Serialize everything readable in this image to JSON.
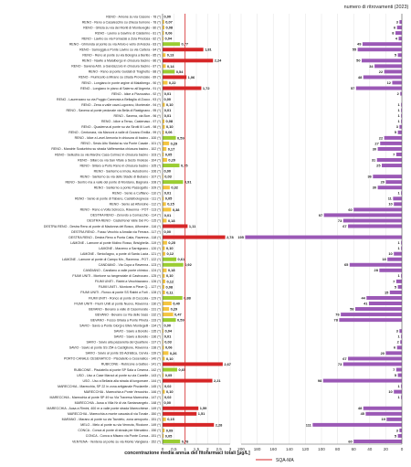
{
  "chart_data": {
    "type": "bar",
    "title_right": "numero di ritrovamenti (2023)",
    "xlabel_left": "concentrazione media annua  del fitofarmaci totali [µg/L]",
    "legend_sqa": "SQA-MA",
    "sqa_value": 1.0,
    "left_xlim": [
      0,
      3
    ],
    "left_ticks": [
      "0",
      "0,5",
      "1",
      "1,5",
      "2",
      "2,5",
      "3"
    ],
    "right_xlim": [
      0,
      200
    ],
    "right_ticks": [
      "0",
      "20",
      "40",
      "60",
      "80",
      "100",
      "120",
      "140",
      "160",
      "180",
      "200"
    ],
    "colors": {
      "above": "#d62728",
      "mid": "#9acd32",
      "low": "#f4c542",
      "count": "#9b59b6",
      "sqa": "#d62728"
    },
    "rows": [
      {
        "label": "RENO - Amone su via Casone - 78 (*)",
        "value": "0,00",
        "v": 0.0,
        "count": null
      },
      {
        "label": "RENO - Reno a Casalecchio su chiusa burrone  - 78 (*)",
        "value": "0,07",
        "v": 0.07,
        "count": 3
      },
      {
        "label": "RENO - Ghisla su via dei Monti di Monteveglio - 80 (*)",
        "value": "0,08",
        "v": 0.08,
        "count": 6
      },
      {
        "label": "RENO - Lavino a Gavrino di Calderino - 81 (*)",
        "value": "0,06",
        "v": 0.06,
        "count": 8
      },
      {
        "label": "RENO - Lavino su via Fornaciai a Zola Predosa - 82 (*)",
        "value": "0,04",
        "v": 0.04,
        "count": 4
      },
      {
        "label": "RENO - Ghironda al ponte su via Arlolo e vello di Anzola - 83 (*)",
        "value": "0,77",
        "v": 0.77,
        "count": 49
      },
      {
        "label": "RENO - Samoggia a Ponte Lavino su via Cartera - 84 (*)",
        "value": "1,81",
        "v": 1.81,
        "count": 55
      },
      {
        "label": "RENO - Reno al ponte su via Bologna a Bentio - 85 (*)",
        "value": "0,13",
        "v": 0.13,
        "count": 5
      },
      {
        "label": "RENO - Navile a Malalbergo in chiusura bacino - 86 (*)",
        "value": "2,24",
        "v": 2.24,
        "count": 50
      },
      {
        "label": "RENO - Savena Abb. a Gandazzolo in chiusura bacino - 87 (*)",
        "value": "0,14",
        "v": 0.14,
        "count": 34
      },
      {
        "label": "RENO - Reno al ponte Guidati di Traghetto - 88 (*)",
        "value": "0,54",
        "v": 0.54,
        "count": 22
      },
      {
        "label": "RENO - Fiumicello a Mirano su strada Provinciale - 89 (*)",
        "value": "1,06",
        "v": 1.06,
        "count": 48
      },
      {
        "label": "RENO - Longiano in ponte argine di Malalbergo - 90 (*)",
        "value": "0,22",
        "v": 0.22,
        "count": 12
      },
      {
        "label": "RENO - Longiano in piano di Salerno all'Argenta - 91 (*)",
        "value": "1,72",
        "v": 1.72,
        "count": 57
      },
      {
        "label": "RENO - Idice a Pizzocalvo - 92 (*)",
        "value": "0,01",
        "v": 0.01,
        "count": 2
      },
      {
        "label": "RENO - Laurenzano su via Poggio Canevaia a Bellaglia di Zocco - 93 (*)",
        "value": "0,00",
        "v": 0.0,
        "count": null
      },
      {
        "label": "RENO - Zena a valle cava Lugorano, Monterale - 94 (*)",
        "value": "0,10",
        "v": 0.1,
        "count": 1
      },
      {
        "label": "RENO - Savena al ponte pedonale via Bella di Rastignano - 95 (*)",
        "value": "0,01",
        "v": 0.01,
        "count": 1
      },
      {
        "label": "RENO - Savena, via Borr - 96 (*)",
        "value": "0,01",
        "v": 0.01,
        "count": 1
      },
      {
        "label": "RENO - Idice a Tenso, Castenaso - 97 (*)",
        "value": "0,08",
        "v": 0.08,
        "count": 1
      },
      {
        "label": "RENO - Quaderna al ponte su via Sirotti III Lurti - 98 (*)",
        "value": "0,10",
        "v": 0.1,
        "count": 3
      },
      {
        "label": "RENO - Centonara, via Marconi a valle di Ozzano Emilia - 99 (*)",
        "value": "0,06",
        "v": 0.06,
        "count": 5
      },
      {
        "label": "RENO - Idice a Lavel Armonia in chiusura di bacino - 100 (*)",
        "value": "0,59",
        "v": 0.59,
        "count": 22
      },
      {
        "label": "RENO - Sesto Alto Staidai su via Ponte Casale - 101 (*)",
        "value": "0,29",
        "v": 0.29,
        "count": 27
      },
      {
        "label": "RENO - Mandrie Scaturbino su strada Valfieramica chiusura bacino - 102 (*)",
        "value": "0,17",
        "v": 0.17,
        "count": 30
      },
      {
        "label": "RENO - Sellustra su via Marche Casa Colmez in chiusura bacino - 103 (*)",
        "value": "0,05",
        "v": 0.05,
        "count": 7
      },
      {
        "label": "RENO - Sillaro su via San Vitale a Sesto Imolese - 104 (*)",
        "value": "0,20",
        "v": 0.2,
        "count": 31
      },
      {
        "label": "RENO - Sillaro a Porto Reno in chiusura bacino - 105 (*)",
        "value": "0,75",
        "v": 0.75,
        "count": 25
      },
      {
        "label": "RENO - Santerno a Imola, Autodromo - 106 (*)",
        "value": "0,00",
        "v": 0.0,
        "count": null
      },
      {
        "label": "RENO - Santerno su via dello Stadio di Bubano - 107 (*)",
        "value": "0,03",
        "v": 0.03,
        "count": 36
      },
      {
        "label": "RENO - Sentro ma a valle del ponte di Mordano, Bagnara - 108 (*)",
        "value": "0,91",
        "v": 0.91,
        "count": 20
      },
      {
        "label": "RENO - Santerno a ponte Passogatto - 109 (*)",
        "value": "0,32",
        "v": 0.32,
        "count": 30
      },
      {
        "label": "RENO - Senio a Cuffiano - 110 (*)",
        "value": "0,01",
        "v": 0.01,
        "count": 1
      },
      {
        "label": "RENO - Senio al ponte di Tabano, Castelbolognese - 111 (*)",
        "value": "0,05",
        "v": 0.05,
        "count": 11
      },
      {
        "label": "RENO - Senio ad Alfonsine - 112 (*)",
        "value": "0,15",
        "v": 0.15,
        "count": 10
      },
      {
        "label": "RENO - Reno a Volta Scirocco, Ravenna - POT - 113 (*)",
        "value": "0,38",
        "v": 0.38,
        "count": 60
      },
      {
        "label": "DESTRA RENO - Zerovdo a Comacchio - 114 (*)",
        "value": "0,01",
        "v": 0.01,
        "count": 97
      },
      {
        "label": "DESTRA RENO - Castell'enei Valle Del Po - 115 (*)",
        "value": "0,18",
        "v": 0.18,
        "count": 73
      },
      {
        "label": "DESTRA RENO - Destra Reno al ponte di Madonna del Bosco, Alfonsine - 116 (*)",
        "value": "1,11",
        "v": 1.11,
        "count": 67
      },
      {
        "label": "DESTRA RENO - Fosso Vecchio a Amalia via Ferrara - 117 (*)",
        "value": "0,00",
        "v": 0.0,
        "count": null
      },
      {
        "label": "DESTRA RENO - Destra Reno a Punta Catia, Ravenna - 118 (*)",
        "value": "2,78",
        "v": 2.78,
        "count": 195
      },
      {
        "label": "LAMONE - Lamone al ponte Molino Rosso, Brisighella - 119 (*)",
        "value": "0,20",
        "v": 0.2,
        "count": 1
      },
      {
        "label": "LAMONE - Marzeno a Sarnignano - 120 (*)",
        "value": "0,10",
        "v": 0.1,
        "count": 1
      },
      {
        "label": "LAMONE - Senio/lagno, a ponte di Santa Lucia - 121 (*)",
        "value": "0,12",
        "v": 0.12,
        "count": 10
      },
      {
        "label": "LAMONE - Lamone al ponte di Campo Mn., Ravenna - POT - 122 (*)",
        "value": "0,61",
        "v": 0.61,
        "count": 18
      },
      {
        "label": "CANDIANO - Via Cupa a Ravenna - 123 (*)",
        "value": "0,92",
        "v": 0.92,
        "count": 65
      },
      {
        "label": "CANDIANO - Candiano a valle ponte chimico - 124 (*)",
        "value": "0,18",
        "v": 0.18,
        "count": 28
      },
      {
        "label": "FIUMI UNITI - Montone su tangenziale di Castrocaro - 125 (*)",
        "value": "0,10",
        "v": 0.1,
        "count": 1
      },
      {
        "label": "FIUMI UNITI - Rabbi a Vecchiazzano - 126 (*)",
        "value": "0,12",
        "v": 0.12,
        "count": 7
      },
      {
        "label": "FIUMI UNITI - Montone a Pieve Q. - 127 (*)",
        "value": "0,08",
        "v": 0.08,
        "count": 5
      },
      {
        "label": "FIUMI UNITI - Ronco al ponte SS Rabbi a Forlì - 128 (*)",
        "value": "0,11",
        "v": 0.11,
        "count": 15
      },
      {
        "label": "FIUMI UNITI - Ronco al ponte di Coccolia - 129 (*)",
        "value": "0,88",
        "v": 0.88,
        "count": 44
      },
      {
        "label": "FIUMI UNITI - Fiumi Uniti al ponte Nuovo, Ravenna - 130 (*)",
        "value": "0,40",
        "v": 0.4,
        "count": 41
      },
      {
        "label": "BEVANO - Bevano a valle di Casemurate - 131 (*)",
        "value": "0,29",
        "v": 0.29,
        "count": 58
      },
      {
        "label": "BEVANO - Bevano su Via delle Sass - 132 (*)",
        "value": "0,47",
        "v": 0.47,
        "count": 76
      },
      {
        "label": "BEVANO - Fosso Ghiaia a Ponte Pineta - 133 (*)",
        "value": "0,59",
        "v": 0.59,
        "count": 78
      },
      {
        "label": "SAVIO - Savio a Ponte Giorgi e Bivio Montegelli - 134 (*)",
        "value": "0,00",
        "v": 0.0,
        "count": null
      },
      {
        "label": "SAVIO - Savio a Borello - 135 (*)",
        "value": "0,04",
        "v": 0.04,
        "count": 3
      },
      {
        "label": "SAVIO - Savio a Borello - 136 (*)",
        "value": "0,01",
        "v": 0.01,
        "count": 1
      },
      {
        "label": "SAVIO - Savio alla passerella del Quartiere - 137 (*)",
        "value": "0,03",
        "v": 0.03,
        "count": 2
      },
      {
        "label": "SAVIO - Savio al ponte SS 254 a Castiglione, Ravenna - 138 (*)",
        "value": "0,06",
        "v": 0.06,
        "count": 6
      },
      {
        "label": "SAVIO - Savio al ponte SS Adriatica, Cervia - 139 (*)",
        "value": "0,26",
        "v": 0.26,
        "count": 20
      },
      {
        "label": "PORTO CANALE CESENATICO - Pisciatello a Cesenatico - 140 (*)",
        "value": "0,10",
        "v": 0.1,
        "count": 67
      },
      {
        "label": "RUBICONE - Rubicone a Gatteo - 141 (*)",
        "value": "2,67",
        "v": 2.67,
        "count": 73
      },
      {
        "label": "RUBICONE - Pisciatello al ponte SP Sala a Cesena - 142 (*)",
        "value": "0,65",
        "v": 0.65,
        "count": 7
      },
      {
        "label": "USO - Uso a Case Marcut al ponte su via Canelle - 143 (*)",
        "value": "0,05",
        "v": 0.05,
        "count": 5
      },
      {
        "label": "USO - Uso a Bellaria alla strada di lungomare - 144 (*)",
        "value": "2,21",
        "v": 2.21,
        "count": 98
      },
      {
        "label": "MARECCHIA - Marecchia, SP 22 in zona artigianale Pisciarelle - 145 (*)",
        "value": "0,02",
        "v": 0.02,
        "count": 1
      },
      {
        "label": "MARECCHIA - Marecchia a Ponte Verucchio - 146 (*)",
        "value": "0,10",
        "v": 0.1,
        "count": 10
      },
      {
        "label": "MARECCHIA - Marecchia al ponte SP 49 su Via Traversa Marecchia - 147 (*)",
        "value": "0,02",
        "v": 0.02,
        "count": 1
      },
      {
        "label": "MARECCHIA - Ausa a Villa Nr di via Santarcangelo - 148 (*)",
        "value": "0,00",
        "v": 0.0,
        "count": null
      },
      {
        "label": "MARECCHIA - Ausa a Rimini, 400 m a valle ponte strada Marecchiese - 149 (*)",
        "value": "1,59",
        "v": 1.59,
        "count": 48
      },
      {
        "label": "MARECCHIA - Marecchia a monte cascata di via Tonale - 150 (*)",
        "value": "1,51",
        "v": 1.51,
        "count": 45
      },
      {
        "label": "MARANO - Marano al ponte su via Tavoleto, zona aeroporto - 151 (*)",
        "value": "0,15",
        "v": 0.15,
        "count": 19
      },
      {
        "label": "MELO - Melo al ponte su via Venezia, Riccione - 149 (*)",
        "value": "2,28",
        "v": 2.28,
        "count": 111
      },
      {
        "label": "CONCA - Conca al ponte di strada per Mercatino - 150 (*)",
        "value": "0,09",
        "v": 0.09,
        "count": 3
      },
      {
        "label": "CONCA - Conca a Misano via Ponte Conca - 151 (*)",
        "value": "0,05",
        "v": 0.05,
        "count": 5
      },
      {
        "label": "VENTENA - Ventena al ponte su via Monte Vangiana - 152 (*)",
        "value": "0,78",
        "v": 0.78,
        "count": 60
      }
    ]
  }
}
